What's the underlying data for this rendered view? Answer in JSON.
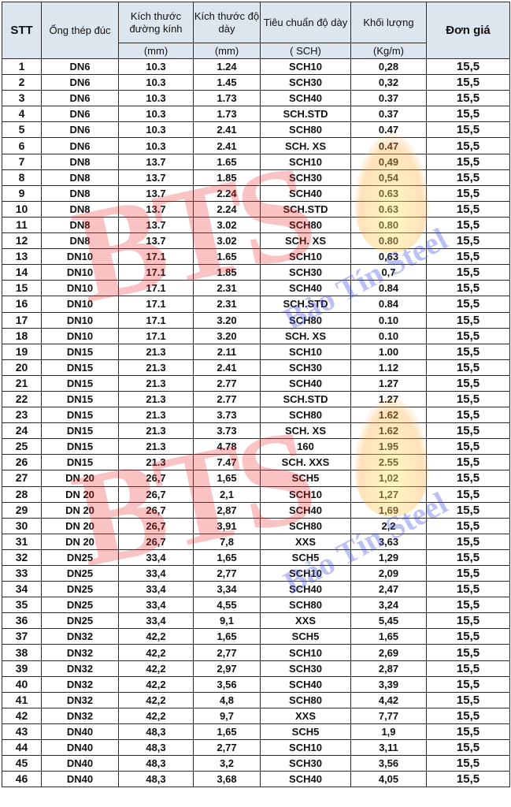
{
  "headers": {
    "stt": "STT",
    "pipe": "Ống thép đúc",
    "diameter": "Kích thước đường kính",
    "thickness": "Kích thước độ dày",
    "standard": "Tiêu chuẩn độ dày",
    "weight": "Khối lượng",
    "price": "Đơn giá",
    "diameter_unit": "(mm)",
    "thickness_unit": "(mm)",
    "standard_unit": "( SCH)",
    "weight_unit": "(Kg/m)"
  },
  "watermark": {
    "logo": "BTS",
    "brand": "Bảo Tín Steel"
  },
  "rows": [
    [
      "1",
      "DN6",
      "10.3",
      "1.24",
      "SCH10",
      "0,28",
      "15,5"
    ],
    [
      "2",
      "DN6",
      "10.3",
      "1.45",
      "SCH30",
      "0,32",
      "15,5"
    ],
    [
      "3",
      "DN6",
      "10.3",
      "1.73",
      "SCH40",
      "0.37",
      "15,5"
    ],
    [
      "4",
      "DN6",
      "10.3",
      "1.73",
      "SCH.STD",
      "0.37",
      "15,5"
    ],
    [
      "5",
      "DN6",
      "10.3",
      "2.41",
      "SCH80",
      "0.47",
      "15,5"
    ],
    [
      "6",
      "DN6",
      "10.3",
      "2.41",
      "SCH. XS",
      "0.47",
      "15,5"
    ],
    [
      "7",
      "DN8",
      "13.7",
      "1.65",
      "SCH10",
      "0,49",
      "15,5"
    ],
    [
      "8",
      "DN8",
      "13.7",
      "1.85",
      "SCH30",
      "0,54",
      "15,5"
    ],
    [
      "9",
      "DN8",
      "13.7",
      "2.24",
      "SCH40",
      "0.63",
      "15,5"
    ],
    [
      "10",
      "DN8",
      "13.7",
      "2.24",
      "SCH.STD",
      "0.63",
      "15,5"
    ],
    [
      "11",
      "DN8",
      "13.7",
      "3.02",
      "SCH80",
      "0.80",
      "15,5"
    ],
    [
      "12",
      "DN8",
      "13.7",
      "3.02",
      "SCH. XS",
      "0.80",
      "15,5"
    ],
    [
      "13",
      "DN10",
      "17.1",
      "1.65",
      "SCH10",
      "0,63",
      "15,5"
    ],
    [
      "14",
      "DN10",
      "17.1",
      "1.85",
      "SCH30",
      "0,7",
      "15,5"
    ],
    [
      "15",
      "DN10",
      "17.1",
      "2.31",
      "SCH40",
      "0.84",
      "15,5"
    ],
    [
      "16",
      "DN10",
      "17.1",
      "2.31",
      "SCH.STD",
      "0.84",
      "15,5"
    ],
    [
      "17",
      "DN10",
      "17.1",
      "3.20",
      "SCH80",
      "0.10",
      "15,5"
    ],
    [
      "18",
      "DN10",
      "17.1",
      "3.20",
      "SCH. XS",
      "0.10",
      "15,5"
    ],
    [
      "19",
      "DN15",
      "21.3",
      "2.11",
      "SCH10",
      "1.00",
      "15,5"
    ],
    [
      "20",
      "DN15",
      "21.3",
      "2.41",
      "SCH30",
      "1.12",
      "15,5"
    ],
    [
      "21",
      "DN15",
      "21.3",
      "2.77",
      "SCH40",
      "1.27",
      "15,5"
    ],
    [
      "22",
      "DN15",
      "21.3",
      "2.77",
      "SCH.STD",
      "1.27",
      "15,5"
    ],
    [
      "23",
      "DN15",
      "21.3",
      "3.73",
      "SCH80",
      "1.62",
      "15,5"
    ],
    [
      "24",
      "DN15",
      "21.3",
      "3.73",
      "SCH. XS",
      "1.62",
      "15,5"
    ],
    [
      "25",
      "DN15",
      "21.3",
      "4.78",
      "160",
      "1.95",
      "15,5"
    ],
    [
      "26",
      "DN15",
      "21.3",
      "7.47",
      "SCH. XXS",
      "2.55",
      "15,5"
    ],
    [
      "27",
      "DN 20",
      "26,7",
      "1,65",
      "SCH5",
      "1,02",
      "15,5"
    ],
    [
      "28",
      "DN 20",
      "26,7",
      "2,1",
      "SCH10",
      "1,27",
      "15,5"
    ],
    [
      "29",
      "DN 20",
      "26,7",
      "2,87",
      "SCH40",
      "1,69",
      "15,5"
    ],
    [
      "30",
      "DN 20",
      "26,7",
      "3,91",
      "SCH80",
      "2,2",
      "15,5"
    ],
    [
      "31",
      "DN 20",
      "26,7",
      "7,8",
      "XXS",
      "3,63",
      "15,5"
    ],
    [
      "32",
      "DN25",
      "33,4",
      "1,65",
      "SCH5",
      "1,29",
      "15,5"
    ],
    [
      "33",
      "DN25",
      "33,4",
      "2,77",
      "SCH10",
      "2,09",
      "15,5"
    ],
    [
      "34",
      "DN25",
      "33,4",
      "3,34",
      "SCH40",
      "2,47",
      "15,5"
    ],
    [
      "35",
      "DN25",
      "33,4",
      "4,55",
      "SCH80",
      "3,24",
      "15,5"
    ],
    [
      "36",
      "DN25",
      "33,4",
      "9,1",
      "XXS",
      "5,45",
      "15,5"
    ],
    [
      "37",
      "DN32",
      "42,2",
      "1,65",
      "SCH5",
      "1,65",
      "15,5"
    ],
    [
      "38",
      "DN32",
      "42,2",
      "2,77",
      "SCH10",
      "2,69",
      "15,5"
    ],
    [
      "39",
      "DN32",
      "42,2",
      "2,97",
      "SCH30",
      "2,87",
      "15,5"
    ],
    [
      "40",
      "DN32",
      "42,2",
      "3,56",
      "SCH40",
      "3,39",
      "15,5"
    ],
    [
      "41",
      "DN32",
      "42,2",
      "4,8",
      "SCH80",
      "4,42",
      "15,5"
    ],
    [
      "42",
      "DN32",
      "42,2",
      "9,7",
      "XXS",
      "7,77",
      "15,5"
    ],
    [
      "43",
      "DN40",
      "48,3",
      "1,65",
      "SCH5",
      "1,9",
      "15,5"
    ],
    [
      "44",
      "DN40",
      "48,3",
      "2,77",
      "SCH10",
      "3,11",
      "15,5"
    ],
    [
      "45",
      "DN40",
      "48,3",
      "3,2",
      "SCH30",
      "3,56",
      "15,5"
    ],
    [
      "46",
      "DN40",
      "48,3",
      "3,68",
      "SCH40",
      "4,05",
      "15,5"
    ]
  ]
}
